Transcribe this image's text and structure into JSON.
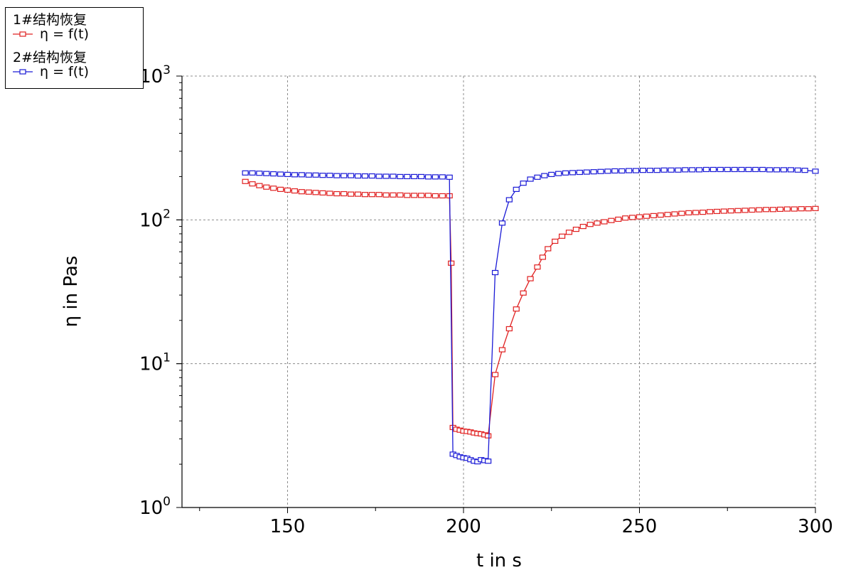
{
  "chart_data": {
    "type": "line",
    "title": "",
    "xlabel": "t in s",
    "ylabel": "η in Pas",
    "xlim": [
      120,
      300
    ],
    "ylim": [
      1,
      1000
    ],
    "y_scale": "log",
    "grid": true,
    "x_ticks": [
      150,
      200,
      250,
      300
    ],
    "x_tick_labels": [
      "150",
      "200",
      "250",
      "300"
    ],
    "y_ticks": [
      1,
      10,
      100,
      1000
    ],
    "y_tick_labels": [
      {
        "base": "10",
        "exp": "0"
      },
      {
        "base": "10",
        "exp": "1"
      },
      {
        "base": "10",
        "exp": "2"
      },
      {
        "base": "10",
        "exp": "3"
      }
    ],
    "legend": {
      "position": "top-left",
      "groups": [
        {
          "header": "1#结构恢复",
          "entry": "η = f(t)",
          "color": "#e02020"
        },
        {
          "header": "2#结构恢复",
          "entry": "η = f(t)",
          "color": "#1a1ad6"
        }
      ]
    },
    "series": [
      {
        "color": "#e02020",
        "x": [
          138,
          140,
          142,
          144,
          146,
          148,
          150,
          152,
          154,
          156,
          158,
          160,
          162,
          164,
          166,
          168,
          170,
          172,
          174,
          176,
          178,
          180,
          182,
          184,
          186,
          188,
          190,
          192,
          194,
          196,
          196.5,
          197,
          198,
          199,
          200,
          201,
          202,
          203,
          204,
          205,
          206,
          207,
          209,
          211,
          213,
          215,
          217,
          219,
          221,
          222.5,
          224,
          226,
          228,
          230,
          232,
          234,
          236,
          238,
          240,
          242,
          244,
          246,
          248,
          250,
          252,
          254,
          256,
          258,
          260,
          262,
          264,
          266,
          268,
          270,
          272,
          274,
          276,
          278,
          280,
          282,
          284,
          286,
          288,
          290,
          292,
          294,
          296,
          298,
          300
        ],
        "y": [
          185,
          178,
          173,
          169,
          166,
          163,
          161,
          159,
          157,
          156,
          155,
          154,
          153,
          152,
          152,
          151,
          151,
          150,
          150,
          150,
          149,
          149,
          149,
          148,
          148,
          148,
          148,
          147,
          147,
          147,
          50,
          3.6,
          3.5,
          3.45,
          3.4,
          3.38,
          3.35,
          3.3,
          3.27,
          3.25,
          3.2,
          3.15,
          8.4,
          12.5,
          17.5,
          24,
          31,
          39,
          47,
          55,
          63,
          71,
          77,
          82,
          86,
          90,
          93,
          95,
          97,
          99,
          101,
          103,
          104,
          105,
          106,
          107,
          108,
          109,
          110,
          111,
          112,
          112.5,
          113,
          114,
          114.5,
          115,
          115.5,
          116,
          116.5,
          117,
          117.5,
          118,
          118,
          118.5,
          119,
          119,
          119.5,
          119.5,
          120
        ]
      },
      {
        "color": "#1a1ad6",
        "x": [
          138,
          140,
          142,
          144,
          146,
          148,
          150,
          152,
          154,
          156,
          158,
          160,
          162,
          164,
          166,
          168,
          170,
          172,
          174,
          176,
          178,
          180,
          182,
          184,
          186,
          188,
          190,
          192,
          194,
          196,
          197,
          198,
          199,
          200,
          201,
          202,
          203,
          204,
          205,
          206,
          207,
          209,
          211,
          213,
          215,
          217,
          219,
          221,
          223,
          225,
          227,
          229,
          231,
          233,
          235,
          237,
          239,
          241,
          243,
          245,
          247,
          249,
          251,
          253,
          255,
          257,
          259,
          261,
          263,
          265,
          267,
          269,
          271,
          273,
          275,
          277,
          279,
          281,
          283,
          285,
          287,
          289,
          291,
          293,
          295,
          297,
          300
        ],
        "y": [
          212,
          212,
          211,
          210,
          209,
          208,
          207,
          206,
          206,
          205,
          205,
          204,
          204,
          203,
          203,
          203,
          202,
          202,
          202,
          201,
          201,
          201,
          200,
          200,
          200,
          200,
          199,
          199,
          199,
          198,
          2.35,
          2.3,
          2.25,
          2.22,
          2.2,
          2.15,
          2.1,
          2.08,
          2.15,
          2.12,
          2.1,
          43,
          95,
          138,
          163,
          180,
          192,
          198,
          203,
          207,
          210,
          212,
          213,
          214,
          215,
          216,
          217,
          218,
          219,
          219,
          220,
          220,
          221,
          221,
          221,
          222,
          222,
          222,
          223,
          223,
          223,
          224,
          224,
          224,
          224,
          224,
          224,
          224,
          224,
          224,
          223,
          223,
          223,
          223,
          222,
          221,
          218
        ]
      }
    ]
  }
}
